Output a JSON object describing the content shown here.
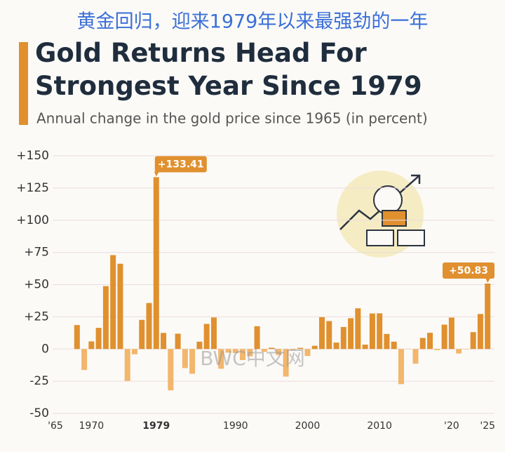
{
  "chart_data": {
    "type": "bar",
    "headline": "黄金回归，迎来1979年以来最强劲的一年",
    "title": "Gold Returns Head For Strongest Year Since 1979",
    "subtitle": "Annual change in the gold price since 1965 (in percent)",
    "watermark": "BWC中文网",
    "categories": [
      "'65",
      null,
      null,
      null,
      null,
      "1970",
      null,
      null,
      null,
      null,
      null,
      null,
      null,
      null,
      "1979",
      null,
      null,
      null,
      null,
      null,
      null,
      null,
      null,
      null,
      null,
      "1990",
      null,
      null,
      null,
      null,
      null,
      null,
      null,
      null,
      null,
      "2000",
      null,
      null,
      null,
      null,
      null,
      null,
      null,
      null,
      null,
      "2010",
      null,
      null,
      null,
      null,
      null,
      null,
      null,
      null,
      null,
      "'20",
      null,
      null,
      null,
      null,
      "'25"
    ],
    "values": [
      0,
      0,
      0,
      18.6,
      -16.3,
      5.9,
      16.4,
      48.8,
      72.9,
      66.2,
      -24.8,
      -4.1,
      22.6,
      35.7,
      133.41,
      12.5,
      -32.1,
      11.9,
      -14.8,
      -19.2,
      5.7,
      19.5,
      24.5,
      -15.3,
      -2.8,
      -3.1,
      -8.6,
      -5.7,
      17.7,
      -2.2,
      1.0,
      -4.6,
      -21.4,
      -0.8,
      0.9,
      -5.4,
      2.5,
      24.7,
      21.7,
      5.0,
      17.1,
      23.9,
      31.6,
      3.4,
      27.6,
      27.7,
      11.7,
      5.7,
      -27.3,
      -0.2,
      -11.4,
      8.6,
      12.6,
      -0.9,
      18.9,
      24.4,
      -3.5,
      -0.3,
      13.1,
      27.2,
      50.83
    ],
    "value_labels": [
      null,
      null,
      null,
      null,
      null,
      null,
      null,
      null,
      null,
      null,
      null,
      null,
      null,
      null,
      "+133.41",
      null,
      null,
      null,
      null,
      null,
      null,
      null,
      null,
      null,
      null,
      null,
      null,
      null,
      null,
      null,
      null,
      null,
      null,
      null,
      null,
      null,
      null,
      null,
      null,
      null,
      null,
      null,
      null,
      null,
      null,
      null,
      null,
      null,
      null,
      null,
      null,
      null,
      null,
      null,
      null,
      null,
      null,
      null,
      null,
      null,
      "+50.83"
    ],
    "color": "#e0902e",
    "negative_color": "#f2b66c",
    "ylim": [
      -50,
      150
    ],
    "yticks": [
      -50,
      -25,
      0,
      {
        "value": 25,
        "label": "+25"
      },
      {
        "value": 50,
        "label": "+50"
      },
      {
        "value": 75,
        "label": "+75"
      },
      {
        "value": 100,
        "label": "+100"
      },
      {
        "value": 125,
        "label": "+125"
      },
      {
        "value": 150,
        "label": "+150"
      }
    ],
    "grid": true
  }
}
